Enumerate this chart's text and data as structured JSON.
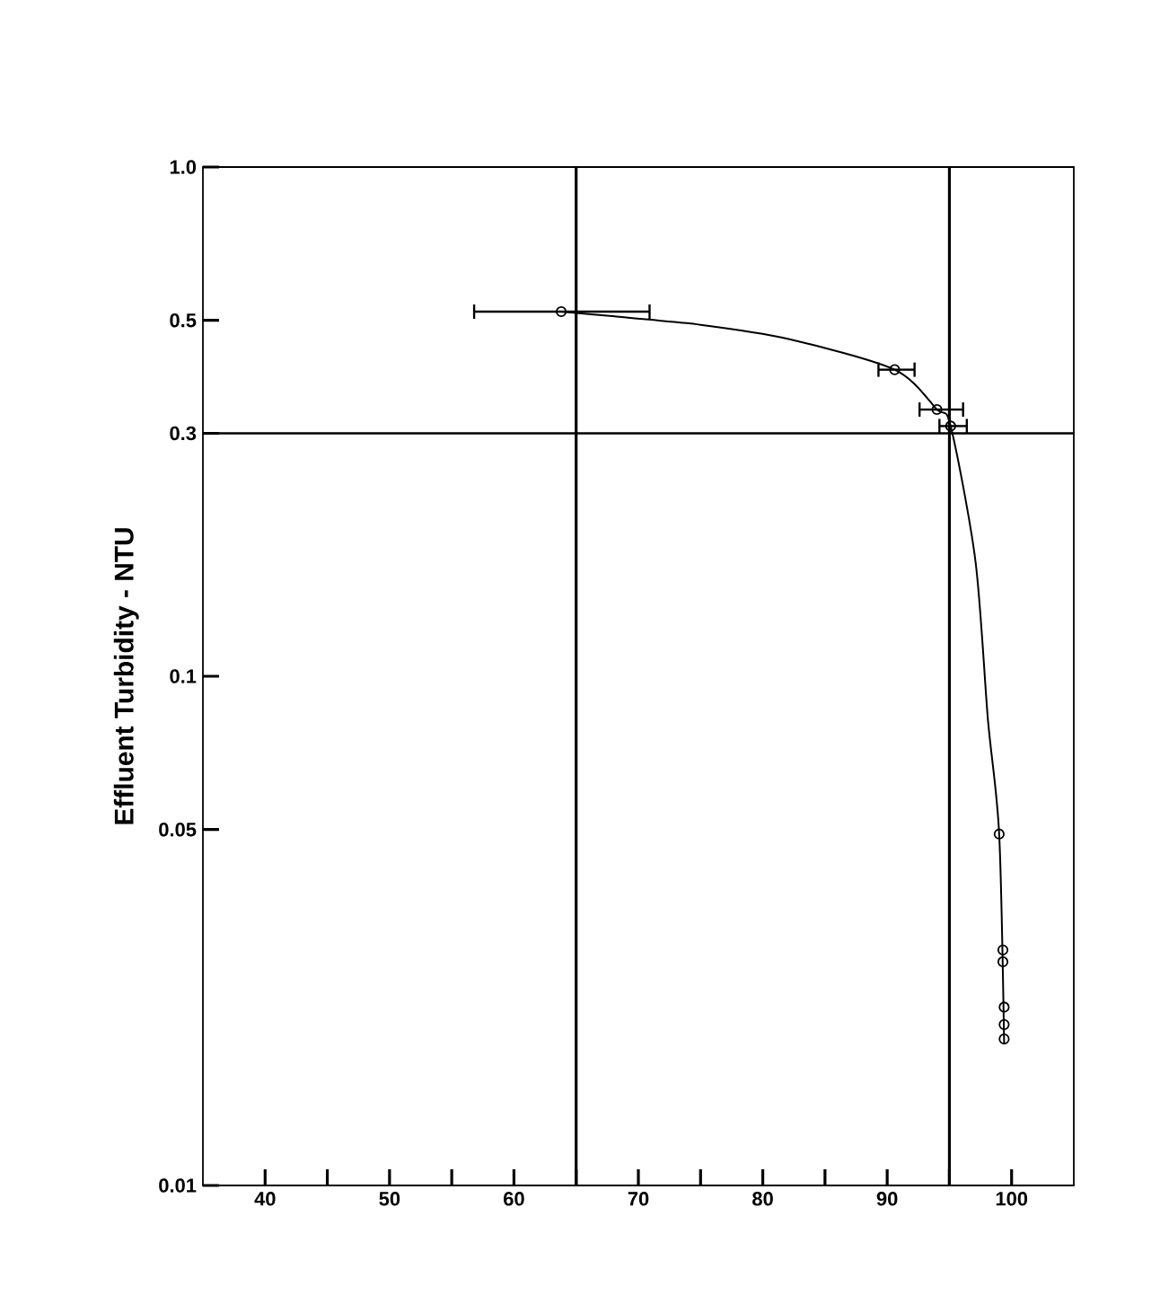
{
  "chart_data": {
    "type": "scatter",
    "ylabel": "Effluent Turbidity - NTU",
    "log": "y",
    "marker": "circle",
    "grid": false,
    "xlim": [
      35,
      105
    ],
    "ylim": [
      0.01,
      1.0
    ],
    "xticks": [
      40,
      {
        "value": 45,
        "label": null
      },
      50,
      {
        "value": 55,
        "label": null
      },
      60,
      {
        "value": 65,
        "label": null
      },
      70,
      {
        "value": 75,
        "label": null
      },
      80,
      {
        "value": 85,
        "label": null
      },
      90,
      {
        "value": 95,
        "label": null
      },
      100
    ],
    "yticks": [
      0.01,
      0.05,
      0.1,
      0.3,
      0.5,
      {
        "value": 1.0,
        "label": "1.0"
      }
    ],
    "series": [
      {
        "color": "#000000",
        "x": [
          63.8,
          90.6,
          94.0,
          95.1,
          99.0,
          99.3,
          99.3,
          99.4,
          99.4,
          99.4
        ],
        "values": [
          0.52,
          0.4,
          0.334,
          0.31,
          0.049,
          0.029,
          0.0275,
          0.0224,
          0.0207,
          0.0194
        ],
        "xerrors": [
          [
            56.8,
            70.9
          ],
          [
            89.3,
            92.2
          ],
          [
            92.6,
            96.1
          ],
          [
            94.2,
            96.4
          ],
          null,
          null,
          null,
          null,
          null,
          null
        ]
      },
      {
        "type": "line",
        "color": "#000000",
        "marker": "none",
        "x": [
          63.8,
          67.7,
          75,
          82,
          90.6,
          94.0,
          95.1,
          97.1,
          98.1,
          99.0,
          99.4
        ],
        "values": [
          0.52,
          0.51,
          0.49,
          0.46,
          0.4,
          0.334,
          0.31,
          0.168,
          0.082,
          0.049,
          0.019
        ]
      }
    ],
    "ref_lines": [
      {
        "axis": "x",
        "value": 65,
        "color": "#000000"
      },
      {
        "axis": "x",
        "value": 95,
        "color": "#000000"
      },
      {
        "axis": "y",
        "value": 0.3,
        "color": "#000000"
      }
    ]
  }
}
